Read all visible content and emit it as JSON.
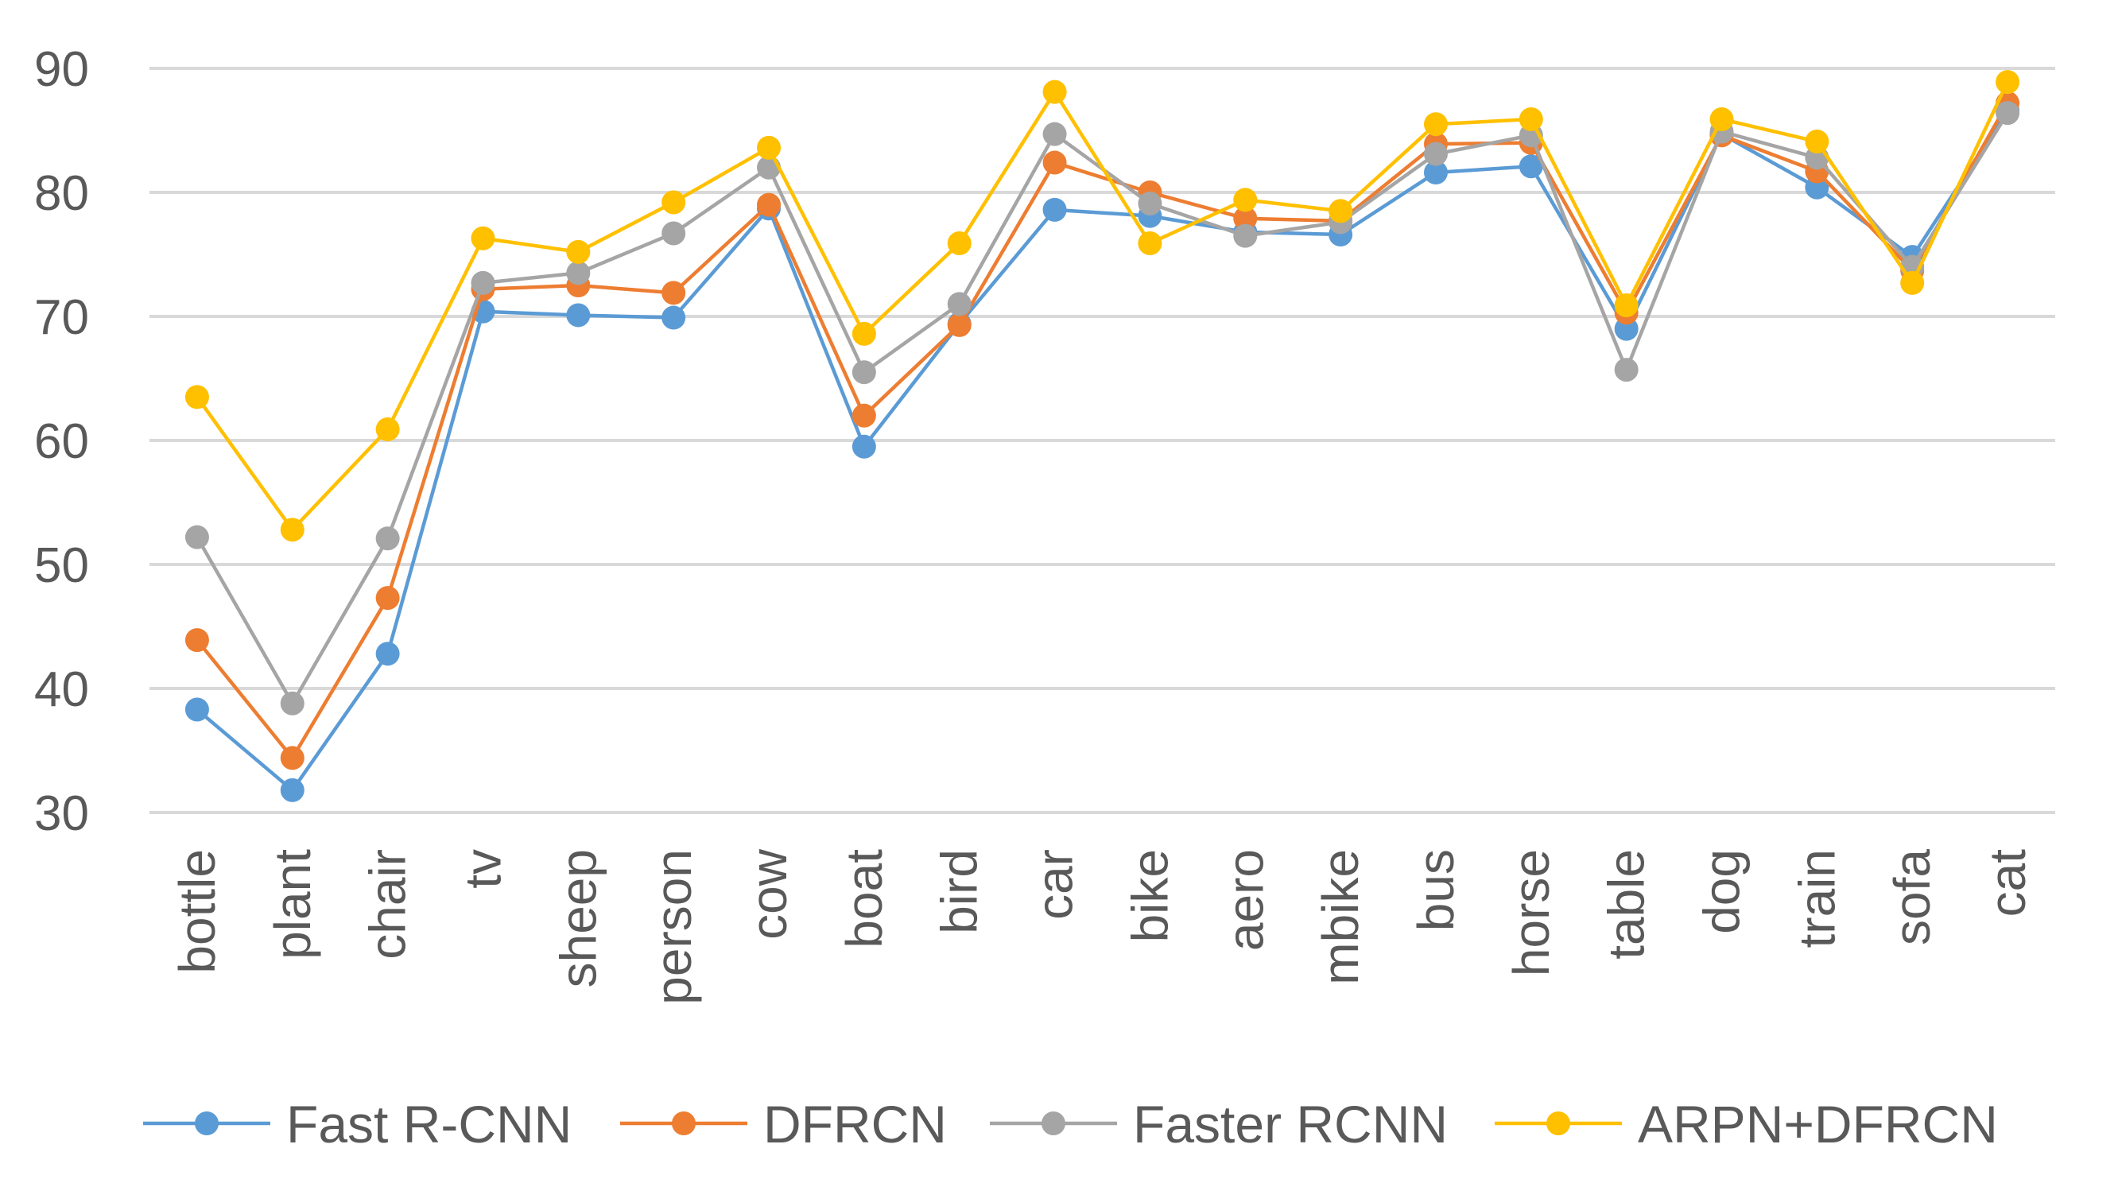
{
  "chart_data": {
    "type": "line",
    "title": "",
    "xlabel": "",
    "ylabel": "",
    "ylim": [
      30,
      90
    ],
    "yticks": [
      30,
      40,
      50,
      60,
      70,
      80,
      90
    ],
    "ytick_labels": [
      "30",
      "40",
      "50",
      "60",
      "70",
      "80",
      "90"
    ],
    "grid": true,
    "legend_position": "bottom",
    "categories": [
      "bottle",
      "plant",
      "chair",
      "tv",
      "sheep",
      "person",
      "cow",
      "boat",
      "bird",
      "car",
      "bike",
      "aero",
      "mbike",
      "bus",
      "horse",
      "table",
      "dog",
      "train",
      "sofa",
      "cat"
    ],
    "series": [
      {
        "name": "Fast R-CNN",
        "color": "#5b9bd5",
        "values": [
          38.3,
          31.8,
          42.8,
          70.4,
          70.1,
          69.9,
          78.7,
          59.5,
          69.4,
          78.6,
          78.1,
          76.8,
          76.6,
          81.6,
          82.1,
          69.0,
          84.7,
          80.4,
          74.8,
          86.6
        ]
      },
      {
        "name": "DFRCN",
        "color": "#ed7d31",
        "values": [
          43.9,
          34.4,
          47.3,
          72.2,
          72.5,
          71.9,
          79.0,
          62.0,
          69.3,
          82.4,
          80.0,
          77.9,
          77.7,
          83.9,
          84.0,
          70.3,
          84.6,
          81.7,
          73.7,
          87.2
        ]
      },
      {
        "name": "Faster RCNN",
        "color": "#a5a5a5",
        "values": [
          52.2,
          38.8,
          52.1,
          72.7,
          73.5,
          76.7,
          82.0,
          65.5,
          71.0,
          84.7,
          79.1,
          76.5,
          77.6,
          83.1,
          84.6,
          65.7,
          84.9,
          82.8,
          74.0,
          86.4
        ]
      },
      {
        "name": "ARPN+DFRCN",
        "color": "#ffc000",
        "values": [
          63.5,
          52.8,
          60.9,
          76.3,
          75.2,
          79.2,
          83.6,
          68.6,
          75.9,
          88.1,
          75.9,
          79.4,
          78.5,
          85.5,
          85.9,
          70.9,
          85.9,
          84.1,
          72.7,
          88.9
        ]
      }
    ]
  }
}
